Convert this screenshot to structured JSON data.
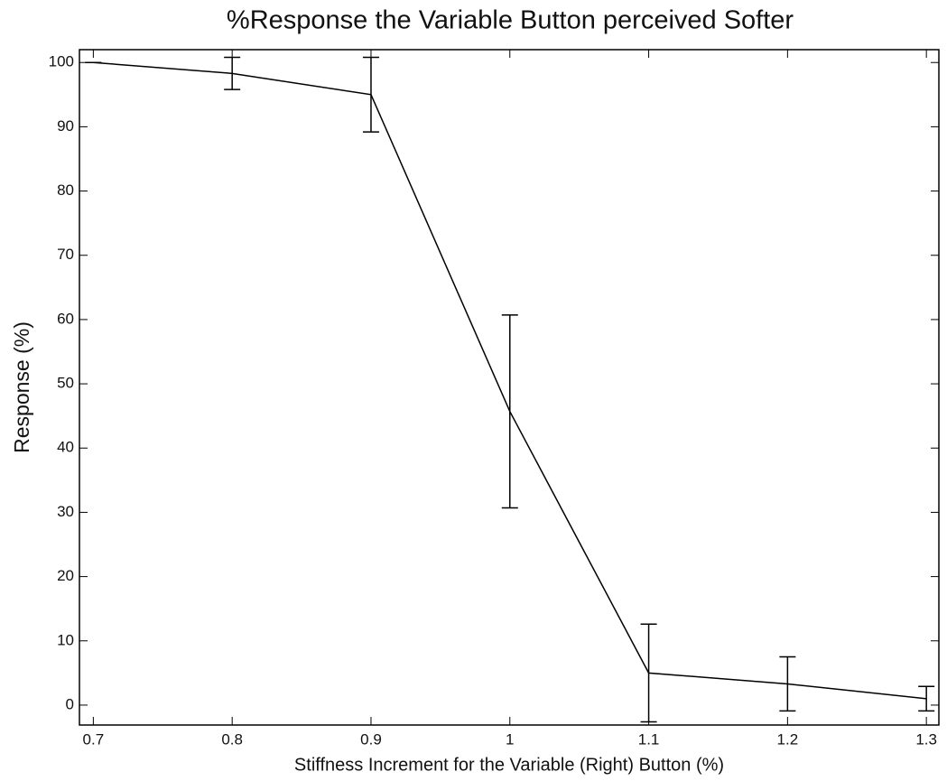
{
  "chart_data": {
    "type": "line",
    "title": "%Response the Variable Button perceived Softer",
    "xlabel": "Stiffness Increment for the Variable (Right) Button (%)",
    "ylabel": "Response (%)",
    "x": [
      0.7,
      0.8,
      0.9,
      1.0,
      1.1,
      1.2,
      1.3
    ],
    "series": [
      {
        "color": "#000000",
        "values": [
          100,
          98.3,
          95,
          45.7,
          5,
          3.3,
          1
        ],
        "errors": [
          0,
          2.5,
          5.8,
          15,
          7.6,
          4.2,
          1.9
        ]
      }
    ],
    "xlim": [
      0.69,
      1.309
    ],
    "xticks": [
      0.7,
      0.8,
      0.9,
      1,
      1.1,
      1.2,
      1.3
    ],
    "ylim": [
      -3.1,
      102
    ],
    "yticks": [
      0,
      10,
      20,
      30,
      40,
      50,
      60,
      70,
      80,
      90,
      100
    ],
    "grid": false
  }
}
